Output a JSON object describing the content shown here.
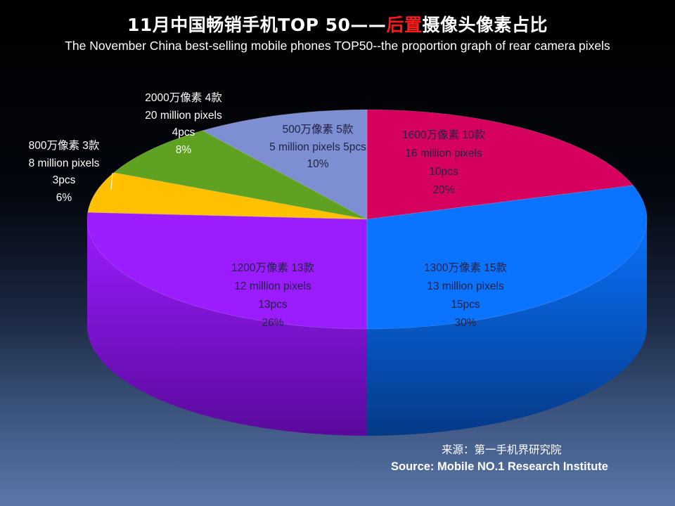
{
  "title_prefix": "11月中国畅销手机TOP 50——",
  "title_highlight": "后置",
  "title_suffix": "摄像头像素占比",
  "subtitle": "The November China best-selling mobile phones TOP50--the proportion graph of rear camera pixels",
  "source_cn": "来源：第一手机界研究院",
  "source_en": "Source: Mobile NO.1 Research Institute",
  "chart_data": {
    "type": "pie",
    "style": "3d",
    "legend": "none",
    "slices": [
      {
        "cn": "1600万像素 10款",
        "en": "16 million pixels",
        "pcs": "10pcs",
        "pct": "20%",
        "value": 20,
        "color": "#d6005e",
        "side": "#8a003a"
      },
      {
        "cn": "1300万像素 15款",
        "en": "13 million pixels",
        "pcs": "15pcs",
        "pct": "30%",
        "value": 30,
        "color": "#0a73ff",
        "side": "#053a86"
      },
      {
        "cn": "1200万像素  13款",
        "en": "12 million pixels",
        "pcs": "13pcs",
        "pct": "26%",
        "value": 26,
        "color": "#9b1cff",
        "side": "#5a0a9c"
      },
      {
        "cn": "800万像素  3款",
        "en": "8 million pixels",
        "pcs": "3pcs",
        "pct": "6%",
        "value": 6,
        "color": "#ffc000",
        "side": "#a67a00"
      },
      {
        "cn": "2000万像素 4款",
        "en": "20 million pixels",
        "pcs": "4pcs",
        "pct": "8%",
        "value": 8,
        "color": "#5fa221",
        "side": "#36620f"
      },
      {
        "cn": "500万像素  5款",
        "en": "5 million pixels 5pcs",
        "pcs": "",
        "pct": "10%",
        "value": 10,
        "color": "#7d8fd2",
        "side": "#475594"
      }
    ]
  }
}
